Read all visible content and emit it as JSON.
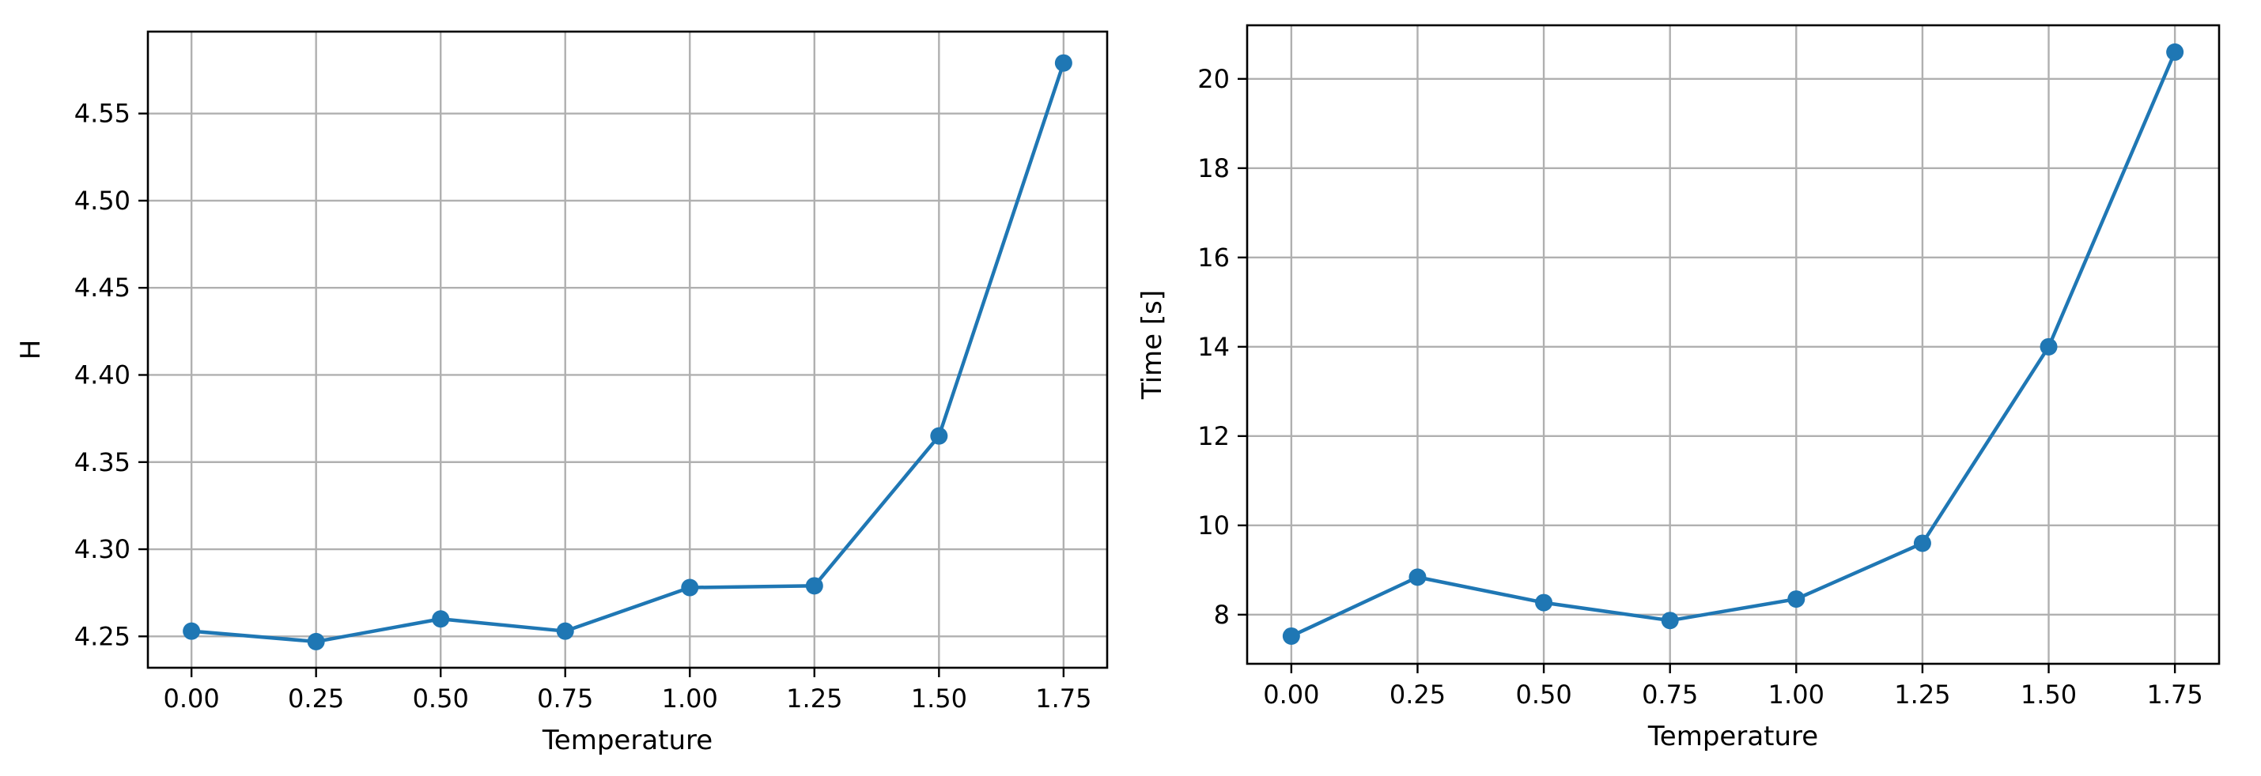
{
  "colors": {
    "series": "#1f77b4",
    "grid": "#b0b0b0",
    "axes": "#000000"
  },
  "chart_data": [
    {
      "type": "line",
      "title": "",
      "xlabel": "Temperature",
      "ylabel": "H",
      "grid": true,
      "marker": "circle",
      "xlim": [
        -0.0875,
        1.8375
      ],
      "ylim": [
        4.232,
        4.597
      ],
      "xticks": [
        0.0,
        0.25,
        0.5,
        0.75,
        1.0,
        1.25,
        1.5,
        1.75
      ],
      "xtick_labels": [
        "0.00",
        "0.25",
        "0.50",
        "0.75",
        "1.00",
        "1.25",
        "1.50",
        "1.75"
      ],
      "yticks": [
        4.25,
        4.3,
        4.35,
        4.4,
        4.45,
        4.5,
        4.55
      ],
      "ytick_labels": [
        "4.25",
        "4.30",
        "4.35",
        "4.40",
        "4.45",
        "4.50",
        "4.55"
      ],
      "x": [
        0.0,
        0.25,
        0.5,
        0.75,
        1.0,
        1.25,
        1.5,
        1.75
      ],
      "series": [
        {
          "values": [
            4.253,
            4.247,
            4.26,
            4.253,
            4.278,
            4.279,
            4.365,
            4.579
          ]
        }
      ]
    },
    {
      "type": "line",
      "title": "",
      "xlabel": "Temperature",
      "ylabel": "Time [s]",
      "grid": true,
      "marker": "circle",
      "xlim": [
        -0.0875,
        1.8375
      ],
      "ylim": [
        6.9,
        21.2
      ],
      "xticks": [
        0.0,
        0.25,
        0.5,
        0.75,
        1.0,
        1.25,
        1.5,
        1.75
      ],
      "xtick_labels": [
        "0.00",
        "0.25",
        "0.50",
        "0.75",
        "1.00",
        "1.25",
        "1.50",
        "1.75"
      ],
      "yticks": [
        8,
        10,
        12,
        14,
        16,
        18,
        20
      ],
      "ytick_labels": [
        "8",
        "10",
        "12",
        "14",
        "16",
        "18",
        "20"
      ],
      "x": [
        0.0,
        0.25,
        0.5,
        0.75,
        1.0,
        1.25,
        1.5,
        1.75
      ],
      "series": [
        {
          "values": [
            7.52,
            8.84,
            8.27,
            7.87,
            8.35,
            9.6,
            14.0,
            20.6
          ]
        }
      ]
    }
  ]
}
